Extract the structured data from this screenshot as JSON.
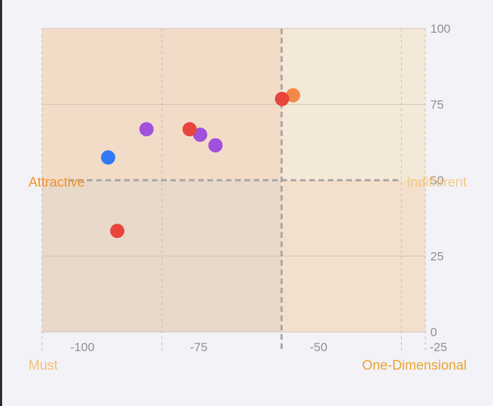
{
  "chart_data": {
    "type": "scatter",
    "title": "",
    "xlabel": "",
    "ylabel": "",
    "xlim": [
      -105,
      -25
    ],
    "ylim": [
      0,
      100
    ],
    "x_ticks": [
      {
        "value": -100,
        "label": "-100"
      },
      {
        "value": -75,
        "label": "-75"
      },
      {
        "value": -50,
        "label": "-50"
      },
      {
        "value": -25,
        "label": "-25"
      }
    ],
    "y_ticks": [
      {
        "value": 0,
        "label": "0"
      },
      {
        "value": 25,
        "label": "25"
      },
      {
        "value": 50,
        "label": "50"
      },
      {
        "value": 75,
        "label": "75"
      },
      {
        "value": 100,
        "label": "100"
      }
    ],
    "x_minor_gridlines": [
      -105,
      -80,
      -55,
      -30
    ],
    "x_midline": -55,
    "y_midline": 50,
    "grid": true,
    "quadrants": [
      {
        "id": "top-left",
        "label": "Attractive",
        "label_color": "#f0932b",
        "fill": "#f2dcc8"
      },
      {
        "id": "top-right",
        "label": "Indifferent",
        "label_color": "#f5c984",
        "fill": "#f4e8d8"
      },
      {
        "id": "bottom-left",
        "label": "Must",
        "label_color": "#f5c070",
        "fill": "#e8d9cb"
      },
      {
        "id": "bottom-right",
        "label": "One-Dimensional",
        "label_color": "#eaa52f",
        "fill": "#f2e0cd"
      }
    ],
    "points": [
      {
        "x": -91.2,
        "y": 57.5,
        "color": "#2f7bf5"
      },
      {
        "x": -83.2,
        "y": 66.8,
        "color": "#a050dc"
      },
      {
        "x": -72.0,
        "y": 65.0,
        "color": "#a050dc"
      },
      {
        "x": -68.8,
        "y": 61.5,
        "color": "#a050dc"
      },
      {
        "x": -74.2,
        "y": 66.8,
        "color": "#e8453c"
      },
      {
        "x": -89.3,
        "y": 33.3,
        "color": "#e8453c"
      },
      {
        "x": -52.6,
        "y": 78.0,
        "color": "#f08a4b"
      },
      {
        "x": -54.9,
        "y": 76.8,
        "color": "#e8453c"
      }
    ]
  }
}
